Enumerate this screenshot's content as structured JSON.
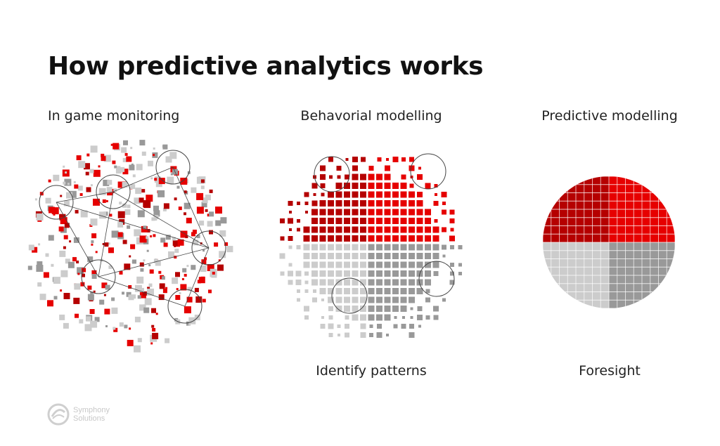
{
  "title": "How predictive analytics works",
  "labels": {
    "stage1": "In game monitoring",
    "stage2": "Behavorial modelling",
    "stage3": "Predictive modelling",
    "outcome2": "Identify patterns",
    "outcome3": "Foresight"
  },
  "logo": {
    "line1": "Symphony",
    "line2": "Solutions"
  },
  "colors": {
    "red": "#e60000",
    "dark_red": "#b50000",
    "gray": "#999999",
    "light_gray": "#cccccc",
    "ring": "#444444"
  }
}
